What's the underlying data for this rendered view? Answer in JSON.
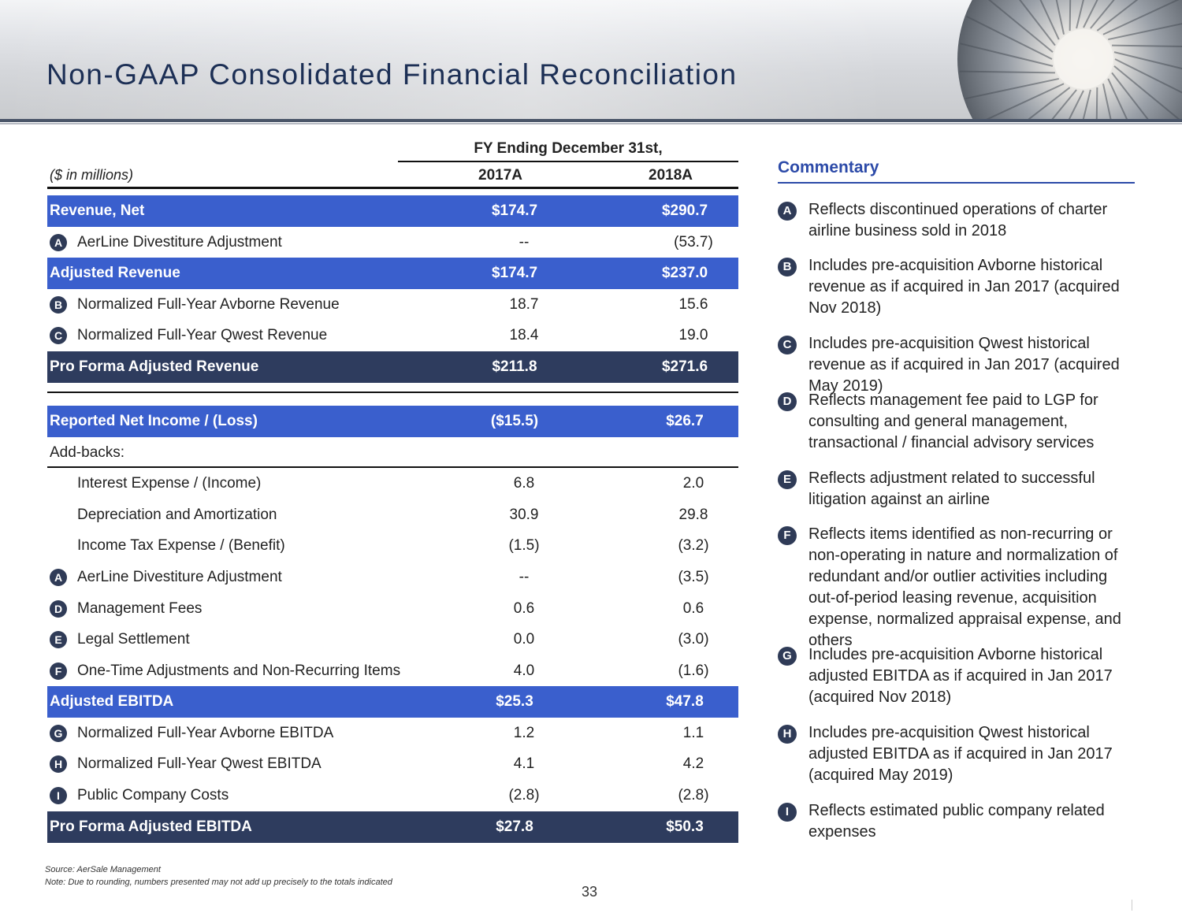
{
  "header": {
    "title": "Non-GAAP Consolidated Financial Reconciliation"
  },
  "table": {
    "period_header": "FY Ending December 31st,",
    "units_label": "($ in millions)",
    "columns": [
      "2017A",
      "2018A"
    ],
    "rows": [
      {
        "label": "Revenue, Net",
        "badge": "",
        "v2017": "$174.7",
        "v2018": "$290.7",
        "style": "total"
      },
      {
        "label": "AerLine Divestiture Adjustment",
        "badge": "A",
        "v2017": "--",
        "v2018": "(53.7)",
        "style": "item"
      },
      {
        "label": "Adjusted Revenue",
        "badge": "",
        "v2017": "$174.7",
        "v2018": "$237.0",
        "style": "total"
      },
      {
        "label": "Normalized Full-Year Avborne Revenue",
        "badge": "B",
        "v2017": "18.7",
        "v2018": "15.6",
        "style": "item"
      },
      {
        "label": "Normalized Full-Year Qwest Revenue",
        "badge": "C",
        "v2017": "18.4",
        "v2018": "19.0",
        "style": "item"
      },
      {
        "label": "Pro Forma Adjusted Revenue",
        "badge": "",
        "v2017": "$211.8",
        "v2018": "$271.6",
        "style": "grand"
      },
      {
        "label": "Reported Net Income / (Loss)",
        "badge": "",
        "v2017": "($15.5)",
        "v2018": "$26.7",
        "style": "total"
      },
      {
        "label": "Add-backs:",
        "badge": "",
        "v2017": "",
        "v2018": "",
        "style": "plain"
      },
      {
        "label": "Interest Expense / (Income)",
        "badge": "",
        "v2017": "6.8",
        "v2018": "2.0",
        "style": "item"
      },
      {
        "label": "Depreciation and Amortization",
        "badge": "",
        "v2017": "30.9",
        "v2018": "29.8",
        "style": "item"
      },
      {
        "label": "Income Tax Expense / (Benefit)",
        "badge": "",
        "v2017": "(1.5)",
        "v2018": "(3.2)",
        "style": "item"
      },
      {
        "label": "AerLine Divestiture Adjustment",
        "badge": "A",
        "v2017": "--",
        "v2018": "(3.5)",
        "style": "item"
      },
      {
        "label": "Management Fees",
        "badge": "D",
        "v2017": "0.6",
        "v2018": "0.6",
        "style": "item"
      },
      {
        "label": "Legal Settlement",
        "badge": "E",
        "v2017": "0.0",
        "v2018": "(3.0)",
        "style": "item"
      },
      {
        "label": "One-Time Adjustments and Non-Recurring Items",
        "badge": "F",
        "v2017": "4.0",
        "v2018": "(1.6)",
        "style": "item"
      },
      {
        "label": "Adjusted EBITDA",
        "badge": "",
        "v2017": "$25.3",
        "v2018": "$47.8",
        "style": "total"
      },
      {
        "label": "Normalized Full-Year Avborne EBITDA",
        "badge": "G",
        "v2017": "1.2",
        "v2018": "1.1",
        "style": "item"
      },
      {
        "label": "Normalized Full-Year Qwest EBITDA",
        "badge": "H",
        "v2017": "4.1",
        "v2018": "4.2",
        "style": "item"
      },
      {
        "label": "Public Company Costs",
        "badge": "I",
        "v2017": "(2.8)",
        "v2018": "(2.8)",
        "style": "item"
      },
      {
        "label": "Pro Forma Adjusted EBITDA",
        "badge": "",
        "v2017": "$27.8",
        "v2018": "$50.3",
        "style": "grand"
      }
    ]
  },
  "commentary": {
    "title": "Commentary",
    "items": [
      {
        "badge": "A",
        "text": "Reflects discontinued operations of charter airline business sold in 2018"
      },
      {
        "badge": "B",
        "text": "Includes pre-acquisition Avborne historical revenue as if acquired in Jan 2017 (acquired Nov 2018)"
      },
      {
        "badge": "C",
        "text": "Includes pre-acquisition Qwest historical revenue as if acquired in Jan 2017 (acquired May 2019)"
      },
      {
        "badge": "D",
        "text": "Reflects management fee paid to LGP for consulting and general management, transactional / financial advisory services"
      },
      {
        "badge": "E",
        "text": "Reflects adjustment related to successful litigation against an airline"
      },
      {
        "badge": "F",
        "text": "Reflects items identified as non-recurring or non-operating in nature and normalization of redundant and/or outlier activities including out-of-period leasing revenue, acquisition expense, normalized appraisal expense, and others"
      },
      {
        "badge": "G",
        "text": "Includes pre-acquisition Avborne historical adjusted EBITDA as if acquired in Jan 2017 (acquired Nov 2018)"
      },
      {
        "badge": "H",
        "text": "Includes pre-acquisition Qwest historical adjusted EBITDA as if acquired in Jan 2017 (acquired May 2019)"
      },
      {
        "badge": "I",
        "text": "Reflects estimated public company related expenses"
      }
    ]
  },
  "footer": {
    "source": "Source: AerSale Management",
    "note": "Note: Due to rounding, numbers presented may not add up precisely to the totals indicated",
    "page_number": "33"
  }
}
